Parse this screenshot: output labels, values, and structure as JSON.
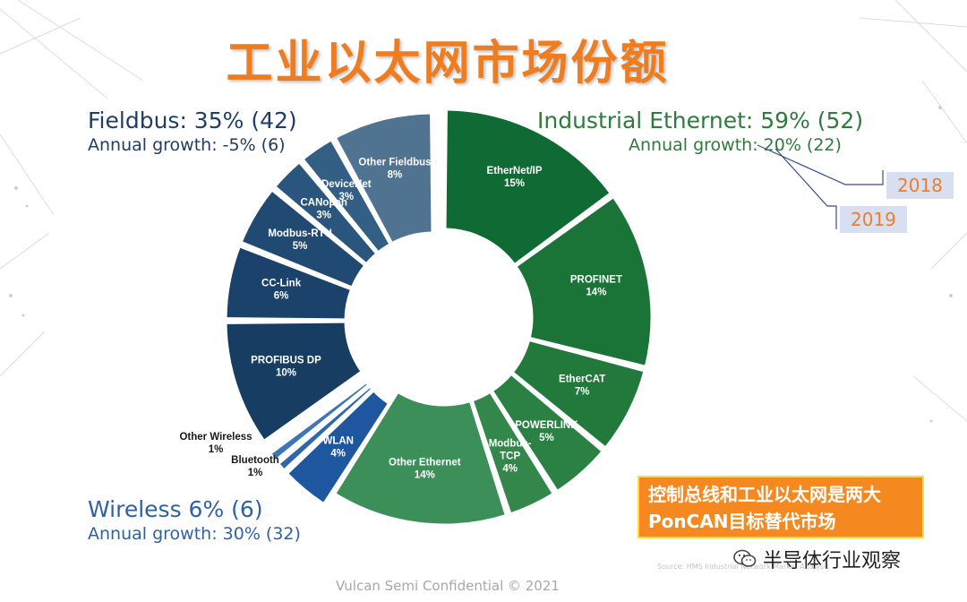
{
  "slide": {
    "title": "工业以太网市场份额",
    "footer": "Vulcan Semi Confidential © 2021",
    "source": "Source: HMS Industrial Network Market Analysis"
  },
  "groups": {
    "fieldbus": {
      "heading": "Fieldbus: 35% (42)",
      "growth": "Annual growth: -5% (6)"
    },
    "ethernet": {
      "heading": "Industrial Ethernet: 59% (52)",
      "growth": "Annual growth: 20% (22)"
    },
    "wireless": {
      "heading": "Wireless 6% (6)",
      "growth": "Annual growth: 30% (32)"
    }
  },
  "years": {
    "y2018": "2018",
    "y2019": "2019"
  },
  "callout": {
    "line1": "控制总线和工业以太网是两大",
    "line2": "PonCAN目标替代市场"
  },
  "watermark": {
    "text": "半导体行业观察",
    "icon": "wechat-icon"
  },
  "colors": {
    "ethernet_dark": "#0f6a33",
    "ethernet_mid": "#217a3c",
    "ethernet_light": "#3d8f5a",
    "fieldbus_dark": "#173d63",
    "fieldbus_light": "#4f7390",
    "wireless": "#1e56a0",
    "title": "#ee7d20",
    "callout": "#f5891f"
  },
  "chart_data": {
    "type": "pie",
    "donut": true,
    "categories": [
      "EtherNet/IP",
      "PROFINET",
      "EtherCAT",
      "POWERLINK",
      "Modbus-TCP",
      "Other Ethernet",
      "WLAN",
      "Bluetooth",
      "Other Wireless",
      "PROFIBUS DP",
      "CC-Link",
      "Modbus-RTU",
      "CANopen",
      "DeviceNet",
      "Other Fieldbus"
    ],
    "values": [
      15,
      14,
      7,
      5,
      4,
      14,
      4,
      1,
      1,
      10,
      6,
      5,
      3,
      3,
      8
    ],
    "labels": [
      "15%",
      "14%",
      "7%",
      "5%",
      "4%",
      "14%",
      "4%",
      "1%",
      "1%",
      "10%",
      "6%",
      "5%",
      "3%",
      "3%",
      "8%"
    ],
    "groups": [
      "ethernet",
      "ethernet",
      "ethernet",
      "ethernet",
      "ethernet",
      "ethernet",
      "wireless",
      "wireless",
      "wireless",
      "fieldbus",
      "fieldbus",
      "fieldbus",
      "fieldbus",
      "fieldbus",
      "fieldbus"
    ],
    "colors": [
      "#0f6a33",
      "#1a7437",
      "#217a3c",
      "#2b8043",
      "#34874b",
      "#3d8f5a",
      "#1e56a0",
      "#2f66ad",
      "#3e74b8",
      "#173d63",
      "#1b426a",
      "#214a72",
      "#2a557c",
      "#335f84",
      "#4f7390"
    ],
    "name_display": [
      "EtherNet/IP",
      "PROFINET",
      "EtherCAT",
      "POWERLINK",
      "Modbus-\nTCP",
      "Other Ethernet",
      "WLAN",
      "Bluetooth",
      "Other Wireless",
      "PROFIBUS DP",
      "CC-Link",
      "Modbus-RTU",
      "CANopen",
      "DeviceNet",
      "Other Fieldbus"
    ]
  }
}
